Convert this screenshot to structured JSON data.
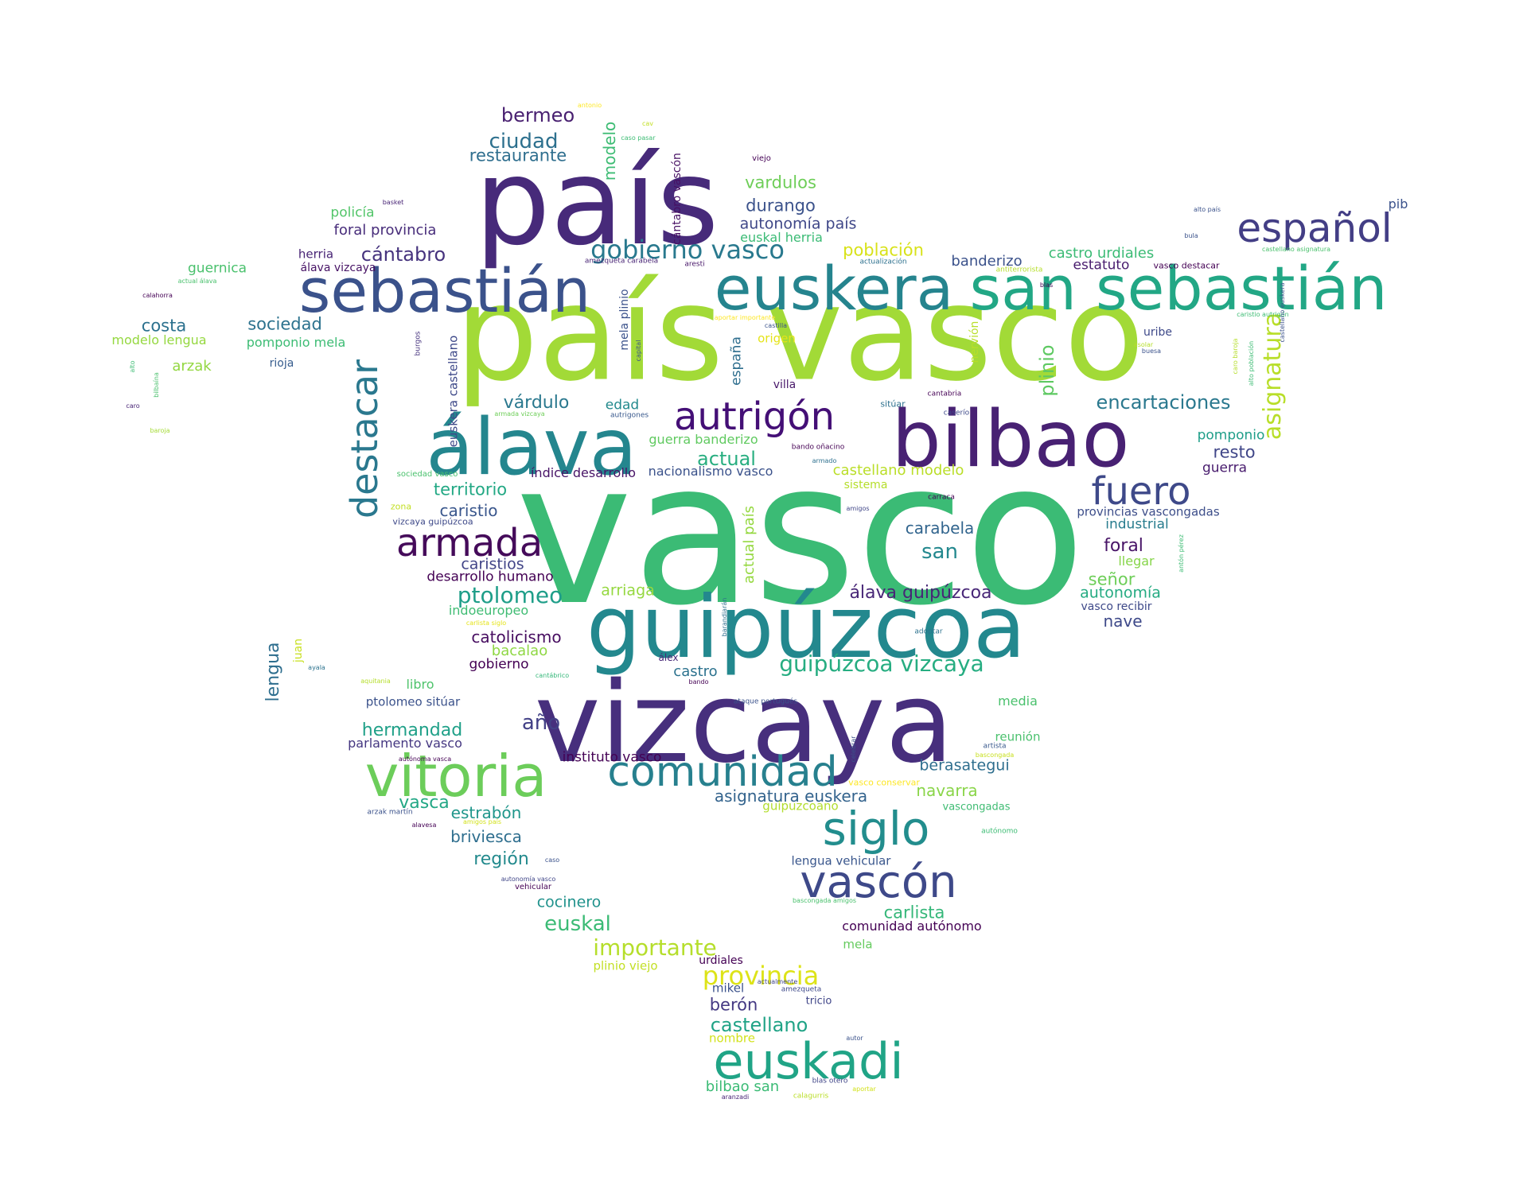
{
  "palette": [
    "#440154",
    "#472d7b",
    "#3b528b",
    "#2c728e",
    "#21918c",
    "#28ae80",
    "#5ec962",
    "#addc30",
    "#fde725"
  ],
  "words": [
    {
      "text": "vasco",
      "color": "#3bbb75"
    },
    {
      "text": "país vasco",
      "color": "#a2da37"
    },
    {
      "text": "país",
      "color": "#472a7a"
    },
    {
      "text": "vizcaya",
      "color": "#472f7d"
    },
    {
      "text": "guipúzcoa",
      "color": "#23888e"
    },
    {
      "text": "bilbao",
      "color": "#482173"
    },
    {
      "text": "álava",
      "color": "#24868e"
    },
    {
      "text": "euskera",
      "color": "#25848e"
    },
    {
      "text": "san sebastián",
      "color": "#22a785"
    },
    {
      "text": "sebastián",
      "color": "#3b528b"
    },
    {
      "text": "vitoria",
      "color": "#6ccd5a"
    },
    {
      "text": "euskadi",
      "color": "#20a486"
    },
    {
      "text": "siglo",
      "color": "#228d8d"
    },
    {
      "text": "vascón",
      "color": "#3e4989"
    },
    {
      "text": "comunidad",
      "color": "#27808e"
    },
    {
      "text": "autrigón",
      "color": "#440f76"
    },
    {
      "text": "destacar",
      "color": "#2a788e"
    },
    {
      "text": "español",
      "color": "#433e85"
    },
    {
      "text": "fuero",
      "color": "#3e4989"
    },
    {
      "text": "armada",
      "color": "#450b5a"
    },
    {
      "text": "gobierno vasco",
      "color": "#29798e"
    },
    {
      "text": "ptolomeo",
      "color": "#1f9e89"
    },
    {
      "text": "guipúzcoa vizcaya",
      "color": "#26ad81"
    },
    {
      "text": "asignatura",
      "color": "#b8de29"
    },
    {
      "text": "plinio",
      "color": "#5ec962"
    },
    {
      "text": "encartaciones",
      "color": "#2a788e"
    },
    {
      "text": "provincia",
      "color": "#dde318"
    },
    {
      "text": "importante",
      "color": "#b5de2b"
    },
    {
      "text": "castellano",
      "color": "#20a386"
    },
    {
      "text": "euskal",
      "color": "#3bbb75"
    },
    {
      "text": "bermeo",
      "color": "#481f70"
    },
    {
      "text": "ciudad",
      "color": "#2d708e"
    },
    {
      "text": "restaurante",
      "color": "#2e6e8e"
    },
    {
      "text": "vardulos",
      "color": "#6ece58"
    },
    {
      "text": "durango",
      "color": "#3b528b"
    },
    {
      "text": "autonomía país",
      "color": "#3f4788"
    },
    {
      "text": "euskal herria",
      "color": "#3bbb75"
    },
    {
      "text": "población",
      "color": "#d8e219"
    },
    {
      "text": "cántabro",
      "color": "#46337e"
    },
    {
      "text": "sociedad",
      "color": "#2c728e"
    },
    {
      "text": "costa",
      "color": "#2c718e"
    },
    {
      "text": "foral provincia",
      "color": "#472c7a"
    },
    {
      "text": "policía",
      "color": "#52c569"
    },
    {
      "text": "guernica",
      "color": "#4ac16d"
    },
    {
      "text": "modelo lengua",
      "color": "#95d840"
    },
    {
      "text": "pomponio mela",
      "color": "#3dbc74"
    },
    {
      "text": "arzak",
      "color": "#93d741"
    },
    {
      "text": "rioja",
      "color": "#365c8d"
    },
    {
      "text": "herria",
      "color": "#482475"
    },
    {
      "text": "álava vizcaya",
      "color": "#471365"
    },
    {
      "text": "várdulo",
      "color": "#2a788e"
    },
    {
      "text": "edad",
      "color": "#238a8d"
    },
    {
      "text": "actual",
      "color": "#28ae80"
    },
    {
      "text": "territorio",
      "color": "#22a884"
    },
    {
      "text": "caristio",
      "color": "#39568c"
    },
    {
      "text": "caristios",
      "color": "#414487"
    },
    {
      "text": "desarrollo humano",
      "color": "#440154"
    },
    {
      "text": "arriaga",
      "color": "#95d840"
    },
    {
      "text": "indoeuropeo",
      "color": "#3fbc73"
    },
    {
      "text": "catolicismo",
      "color": "#470d60"
    },
    {
      "text": "bacalao",
      "color": "#8fd744"
    },
    {
      "text": "gobierno",
      "color": "#440154"
    },
    {
      "text": "castro",
      "color": "#2c728e"
    },
    {
      "text": "año",
      "color": "#424086"
    },
    {
      "text": "hermandad",
      "color": "#1fa088"
    },
    {
      "text": "parlamento vasco",
      "color": "#453781"
    },
    {
      "text": "instituto vasco",
      "color": "#440154"
    },
    {
      "text": "vasca",
      "color": "#22a785"
    },
    {
      "text": "estrabón",
      "color": "#1f968b"
    },
    {
      "text": "briviesca",
      "color": "#2e6e8e"
    },
    {
      "text": "región",
      "color": "#238a8d"
    },
    {
      "text": "cocinero",
      "color": "#20928c"
    },
    {
      "text": "banderizo",
      "color": "#3b528b"
    },
    {
      "text": "castro urdiales",
      "color": "#3bbb75"
    },
    {
      "text": "estatuto",
      "color": "#481c6e"
    },
    {
      "text": "pib",
      "color": "#3b528b"
    },
    {
      "text": "uribe",
      "color": "#3e4989"
    },
    {
      "text": "pomponio",
      "color": "#1f9e89"
    },
    {
      "text": "resto",
      "color": "#404688"
    },
    {
      "text": "guerra",
      "color": "#481c6e"
    },
    {
      "text": "provincias vascongadas",
      "color": "#3d4e8a"
    },
    {
      "text": "industrial",
      "color": "#287c8e"
    },
    {
      "text": "foral",
      "color": "#481467"
    },
    {
      "text": "llegar",
      "color": "#86d549"
    },
    {
      "text": "señor",
      "color": "#6ece58"
    },
    {
      "text": "autonomía",
      "color": "#25ab82"
    },
    {
      "text": "vasco recibir",
      "color": "#3e4989"
    },
    {
      "text": "nave",
      "color": "#3e4989"
    },
    {
      "text": "carabela",
      "color": "#32658e"
    },
    {
      "text": "san",
      "color": "#23888e"
    },
    {
      "text": "álava guipúzcoa",
      "color": "#482677"
    },
    {
      "text": "guerra banderizo",
      "color": "#60ca60"
    },
    {
      "text": "castellano modelo",
      "color": "#bade28"
    },
    {
      "text": "nacionalismo vasco",
      "color": "#3b528b"
    },
    {
      "text": "índice desarrollo",
      "color": "#481467"
    },
    {
      "text": "sistema",
      "color": "#b5de2b"
    },
    {
      "text": "media",
      "color": "#4ac16d"
    },
    {
      "text": "reunión",
      "color": "#4ac16d"
    },
    {
      "text": "berasategui",
      "color": "#2e6e8e"
    },
    {
      "text": "asignatura euskera",
      "color": "#33638d"
    },
    {
      "text": "navarra",
      "color": "#89d548"
    },
    {
      "text": "guipuzcoano",
      "color": "#b2dd2d"
    },
    {
      "text": "vascongadas",
      "color": "#3fbc73"
    },
    {
      "text": "carlista",
      "color": "#35b779"
    },
    {
      "text": "comunidad autónomo",
      "color": "#440154"
    },
    {
      "text": "lengua vehicular",
      "color": "#39568c"
    },
    {
      "text": "mela",
      "color": "#65cb5e"
    },
    {
      "text": "berón",
      "color": "#443983"
    },
    {
      "text": "mikel",
      "color": "#3b528b"
    },
    {
      "text": "urdiales",
      "color": "#440154"
    },
    {
      "text": "tricio",
      "color": "#404688"
    },
    {
      "text": "plinio viejo",
      "color": "#c2df23"
    },
    {
      "text": "nombre",
      "color": "#d2e21b"
    },
    {
      "text": "bilbao san",
      "color": "#3bbb75"
    },
    {
      "text": "lengua",
      "color": "#2e6e8e"
    },
    {
      "text": "juan",
      "color": "#c8e020"
    },
    {
      "text": "libro",
      "color": "#4ec36b"
    },
    {
      "text": "ptolomeo sitúar",
      "color": "#3b528b"
    },
    {
      "text": "españa",
      "color": "#2e6e8e"
    },
    {
      "text": "origen",
      "color": "#e5e419"
    },
    {
      "text": "villa",
      "color": "#48186a"
    },
    {
      "text": "nervión",
      "color": "#b8de29"
    },
    {
      "text": "euskera castellano",
      "color": "#3e4989"
    },
    {
      "text": "cántabro vascón",
      "color": "#471063"
    },
    {
      "text": "modelo",
      "color": "#3dbc74"
    },
    {
      "text": "mela plinio",
      "color": "#3b528b"
    },
    {
      "text": "actual país",
      "color": "#95d840"
    },
    {
      "text": "burgos",
      "color": "#46337e"
    },
    {
      "text": "amezqueta carabela",
      "color": "#482475"
    },
    {
      "text": "aresti",
      "color": "#481769"
    },
    {
      "text": "actualización",
      "color": "#2d708e"
    },
    {
      "text": "antiterrorista",
      "color": "#b5de2b"
    },
    {
      "text": "cantabria",
      "color": "#440154"
    },
    {
      "text": "caserío",
      "color": "#3e4989"
    },
    {
      "text": "sitúar",
      "color": "#2d708e"
    },
    {
      "text": "carraca",
      "color": "#440154"
    },
    {
      "text": "amigos",
      "color": "#404688"
    },
    {
      "text": "adoptar",
      "color": "#2c728e"
    },
    {
      "text": "barandiarán",
      "color": "#2e6e8e"
    },
    {
      "text": "álex",
      "color": "#482878"
    },
    {
      "text": "bando",
      "color": "#440154"
    },
    {
      "text": "ataque portugués",
      "color": "#3b528b"
    },
    {
      "text": "celebrar",
      "color": "#3b528b"
    },
    {
      "text": "artista",
      "color": "#38588c"
    },
    {
      "text": "bascongada",
      "color": "#c8e020"
    },
    {
      "text": "vasco conservar",
      "color": "#fde725"
    },
    {
      "text": "autónomo",
      "color": "#3dbc74"
    },
    {
      "text": "bando oñacino",
      "color": "#440154"
    },
    {
      "text": "armado",
      "color": "#2d708e"
    },
    {
      "text": "autrigones",
      "color": "#38588c"
    },
    {
      "text": "armada vizcaya",
      "color": "#6ece58"
    },
    {
      "text": "sociedad vasco",
      "color": "#4ac16d"
    },
    {
      "text": "zona",
      "color": "#c2df23"
    },
    {
      "text": "vizcaya guipúzcoa",
      "color": "#3e4989"
    },
    {
      "text": "baroja",
      "color": "#a5db36"
    },
    {
      "text": "aquitania",
      "color": "#b5de2b"
    },
    {
      "text": "ayala",
      "color": "#2c728e"
    },
    {
      "text": "carlista siglo",
      "color": "#e5e419"
    },
    {
      "text": "cantábrico",
      "color": "#35b779"
    },
    {
      "text": "autónoma vasca",
      "color": "#440154"
    },
    {
      "text": "arzak martín",
      "color": "#3b528b"
    },
    {
      "text": "alavesa",
      "color": "#440154"
    },
    {
      "text": "amigos país",
      "color": "#d2e21b"
    },
    {
      "text": "caso",
      "color": "#3b528b"
    },
    {
      "text": "autonomía vasco",
      "color": "#404688"
    },
    {
      "text": "vehicular",
      "color": "#440154"
    },
    {
      "text": "bascongada amigos",
      "color": "#4ac16d"
    },
    {
      "text": "actualmente",
      "color": "#404688"
    },
    {
      "text": "amezqueta",
      "color": "#3e4989"
    },
    {
      "text": "autor",
      "color": "#3b528b"
    },
    {
      "text": "blas otero",
      "color": "#404688"
    },
    {
      "text": "aportar",
      "color": "#d2e21b"
    },
    {
      "text": "aranzadi",
      "color": "#482475"
    },
    {
      "text": "calagurris",
      "color": "#bade28"
    },
    {
      "text": "antonio",
      "color": "#fde725"
    },
    {
      "text": "cav",
      "color": "#c2df23"
    },
    {
      "text": "caso pasar",
      "color": "#3dbc74"
    },
    {
      "text": "viejo",
      "color": "#440154"
    },
    {
      "text": "castilla",
      "color": "#3b528b"
    },
    {
      "text": "aportar importante",
      "color": "#fde725"
    },
    {
      "text": "capital",
      "color": "#3b528b"
    },
    {
      "text": "basket",
      "color": "#482475"
    },
    {
      "text": "actual álava",
      "color": "#4ac16d"
    },
    {
      "text": "calahorra",
      "color": "#440154"
    },
    {
      "text": "alto",
      "color": "#3dbc74"
    },
    {
      "text": "bilbaína",
      "color": "#4ac16d"
    },
    {
      "text": "caro",
      "color": "#482475"
    },
    {
      "text": "alto país",
      "color": "#3b528b"
    },
    {
      "text": "bula",
      "color": "#3b528b"
    },
    {
      "text": "castellano asignatura",
      "color": "#4ac16d"
    },
    {
      "text": "blas",
      "color": "#440154"
    },
    {
      "text": "caristio autrigón",
      "color": "#3dbc74"
    },
    {
      "text": "castellano euskera",
      "color": "#3b528b"
    },
    {
      "text": "asolar",
      "color": "#b5de2b"
    },
    {
      "text": "buesa",
      "color": "#3b528b"
    },
    {
      "text": "caro baroja",
      "color": "#b5de2b"
    },
    {
      "text": "alto población",
      "color": "#3dbc74"
    },
    {
      "text": "vasco destacar",
      "color": "#440154"
    },
    {
      "text": "antón pérez",
      "color": "#3dbc74"
    }
  ]
}
